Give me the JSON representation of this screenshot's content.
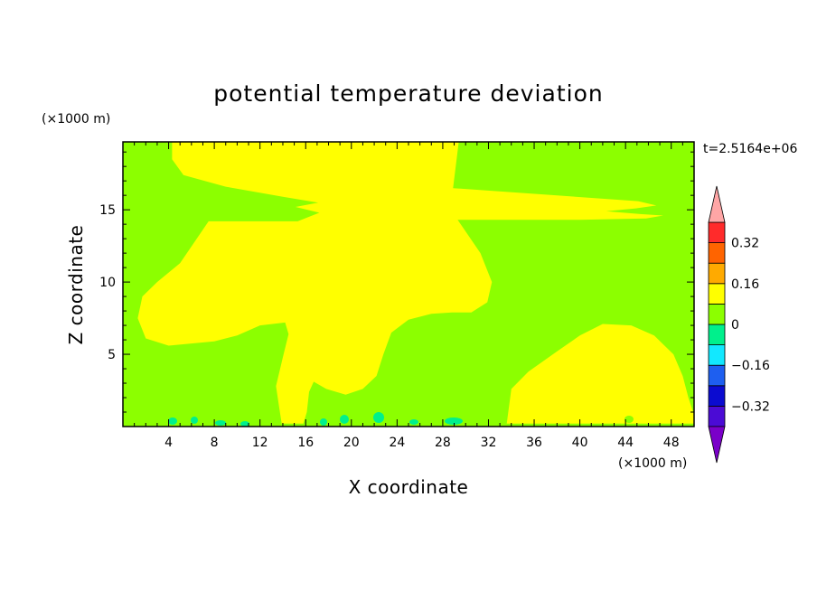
{
  "chart_data": {
    "type": "heatmap",
    "title": "potential temperature deviation",
    "xlabel": "X coordinate",
    "ylabel": "Z coordinate",
    "x_unit": "(×1000 m)",
    "y_unit": "(×1000 m)",
    "time_label": "t=2.5164e+06",
    "xlim": [
      0,
      50
    ],
    "ylim": [
      0,
      19.7
    ],
    "x_ticks": [
      4,
      8,
      12,
      16,
      20,
      24,
      28,
      32,
      36,
      40,
      44,
      48
    ],
    "y_ticks": [
      5,
      10,
      15
    ],
    "background_color": "#8cff00",
    "regions": [
      {
        "name": "negative-deviation-main",
        "level_index": 6,
        "points": [
          [
            4.3,
            19.7
          ],
          [
            29.4,
            19.7
          ],
          [
            28.9,
            16.5
          ],
          [
            45.1,
            15.6
          ],
          [
            46.7,
            15.3
          ],
          [
            44.9,
            15.1
          ],
          [
            42.3,
            14.9
          ],
          [
            45.3,
            14.7
          ],
          [
            47.3,
            14.6
          ],
          [
            45.8,
            14.4
          ],
          [
            40.0,
            14.3
          ],
          [
            29.3,
            14.3
          ],
          [
            30.0,
            13.5
          ],
          [
            31.3,
            12.0
          ],
          [
            32.3,
            10.0
          ],
          [
            31.9,
            8.6
          ],
          [
            30.5,
            7.9
          ],
          [
            28.8,
            7.9
          ],
          [
            27.0,
            7.8
          ],
          [
            25.0,
            7.4
          ],
          [
            23.5,
            6.5
          ],
          [
            22.8,
            5.0
          ],
          [
            22.2,
            3.5
          ],
          [
            21.0,
            2.6
          ],
          [
            19.5,
            2.2
          ],
          [
            17.8,
            2.6
          ],
          [
            16.7,
            3.1
          ],
          [
            16.3,
            2.4
          ],
          [
            16.1,
            1.0
          ],
          [
            15.8,
            0.2
          ],
          [
            13.9,
            0.2
          ],
          [
            13.7,
            1.2
          ],
          [
            13.4,
            2.8
          ],
          [
            14.0,
            4.8
          ],
          [
            14.5,
            6.4
          ],
          [
            14.2,
            7.2
          ],
          [
            12.0,
            7.0
          ],
          [
            10.0,
            6.3
          ],
          [
            8.0,
            5.9
          ],
          [
            4.0,
            5.6
          ],
          [
            2.0,
            6.1
          ],
          [
            1.3,
            7.5
          ],
          [
            1.7,
            9.0
          ],
          [
            3.0,
            10.0
          ],
          [
            5.0,
            11.3
          ],
          [
            7.5,
            14.2
          ],
          [
            15.3,
            14.2
          ],
          [
            17.2,
            14.8
          ],
          [
            15.1,
            15.2
          ],
          [
            17.1,
            15.5
          ],
          [
            14.0,
            15.9
          ],
          [
            9.0,
            16.6
          ],
          [
            5.3,
            17.4
          ],
          [
            4.3,
            18.5
          ]
        ]
      },
      {
        "name": "negative-deviation-lower-right",
        "level_index": 6,
        "points": [
          [
            33.6,
            0.2
          ],
          [
            34.0,
            2.6
          ],
          [
            35.5,
            3.8
          ],
          [
            38.0,
            5.2
          ],
          [
            40.0,
            6.3
          ],
          [
            42.0,
            7.1
          ],
          [
            44.5,
            7.0
          ],
          [
            46.5,
            6.3
          ],
          [
            48.2,
            5.0
          ],
          [
            49.0,
            3.5
          ],
          [
            49.5,
            2.0
          ],
          [
            50.0,
            0.8
          ],
          [
            50.0,
            0.2
          ]
        ]
      }
    ],
    "colorbar": {
      "levels": [
        -0.4,
        -0.32,
        -0.24,
        -0.16,
        -0.08,
        0,
        0.08,
        0.16,
        0.24,
        0.32,
        0.4
      ],
      "tick_labels": [
        "0.32",
        "0.16",
        "0",
        "−0.16",
        "−0.32"
      ],
      "tick_values": [
        0.32,
        0.16,
        0,
        -0.16,
        -0.32
      ],
      "bin_colors": [
        "#4b0bd5",
        "#0b0bd0",
        "#1e5ff0",
        "#12e8ff",
        "#00f08c",
        "#8cff00",
        "#ffff00",
        "#ffaa00",
        "#ff6400",
        "#ff2b2b"
      ],
      "under_color": "#7a00c9",
      "over_color": "#ffa6a6"
    },
    "grid": false,
    "legend_placement": "right"
  }
}
